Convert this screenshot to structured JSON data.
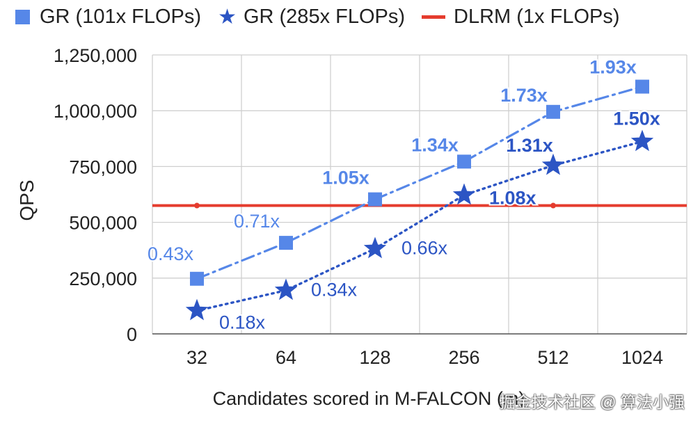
{
  "chart_data": {
    "type": "line",
    "title": "",
    "xlabel": "Candidates scored in M-FALCON (m)",
    "ylabel": "QPS",
    "categories": [
      "32",
      "64",
      "128",
      "256",
      "512",
      "1024"
    ],
    "ylim": [
      0,
      1250000
    ],
    "yticks": [
      0,
      250000,
      500000,
      750000,
      1000000,
      1250000
    ],
    "ytick_labels": [
      "0",
      "250,000",
      "500,000",
      "750,000",
      "1,000,000",
      "1,250,000"
    ],
    "grid": "horizontal and vertical",
    "legend_position": "top",
    "series": [
      {
        "name": "GR (101x FLOPs)",
        "marker": "square",
        "line_style": "dash-dot",
        "color": "#5687e8",
        "label_bold": [
          false,
          false,
          true,
          true,
          true,
          true
        ],
        "values": [
          247000,
          408000,
          603000,
          772000,
          995000,
          1108000
        ],
        "labels": [
          "0.43x",
          "0.71x",
          "1.05x",
          "1.34x",
          "1.73x",
          "1.93x"
        ]
      },
      {
        "name": "GR (285x FLOPs)",
        "marker": "star",
        "line_style": "dotted",
        "color": "#2c55c4",
        "label_bold": [
          false,
          false,
          false,
          true,
          true,
          true
        ],
        "values": [
          104000,
          195000,
          382000,
          622000,
          755000,
          862000
        ],
        "labels": [
          "0.18x",
          "0.34x",
          "0.66x",
          "1.08x",
          "1.31x",
          "1.50x"
        ]
      },
      {
        "name": "DLRM (1x FLOPs)",
        "marker": "line",
        "line_style": "solid",
        "color": "#e53c2e",
        "values": [
          575000,
          575000,
          575000,
          575000,
          575000,
          575000
        ],
        "labels": []
      }
    ]
  },
  "legend": {
    "items": [
      {
        "label": "GR (101x FLOPs)",
        "icon": "square-marker-icon",
        "color": "#5687e8"
      },
      {
        "label": "GR (285x FLOPs)",
        "icon": "star-marker-icon",
        "color": "#2c55c4"
      },
      {
        "label": "DLRM (1x FLOPs)",
        "icon": "line-marker-icon",
        "color": "#e53c2e"
      }
    ]
  },
  "watermark": "掘金技术社区 @ 算法小强"
}
